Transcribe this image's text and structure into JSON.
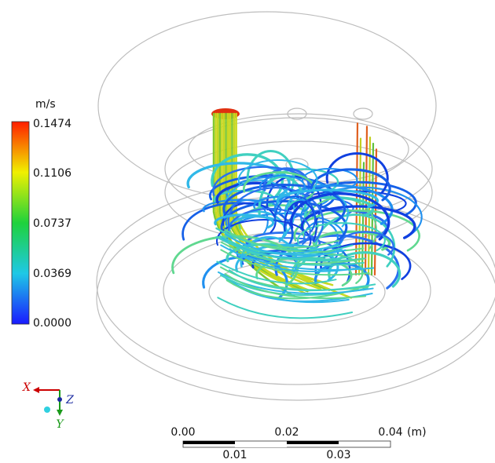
{
  "colorbar": {
    "unit": "m/s",
    "ticks": [
      "0.1474",
      "0.1106",
      "0.0737",
      "0.0369",
      "0.0000"
    ]
  },
  "triad": {
    "x": "X",
    "z": "Z",
    "y": "Y"
  },
  "scale_bar": {
    "top_labels": [
      "0.00",
      "0.02",
      "0.04"
    ],
    "unit": "(m)",
    "bottom_labels": [
      "0.01",
      "0.03"
    ]
  }
}
